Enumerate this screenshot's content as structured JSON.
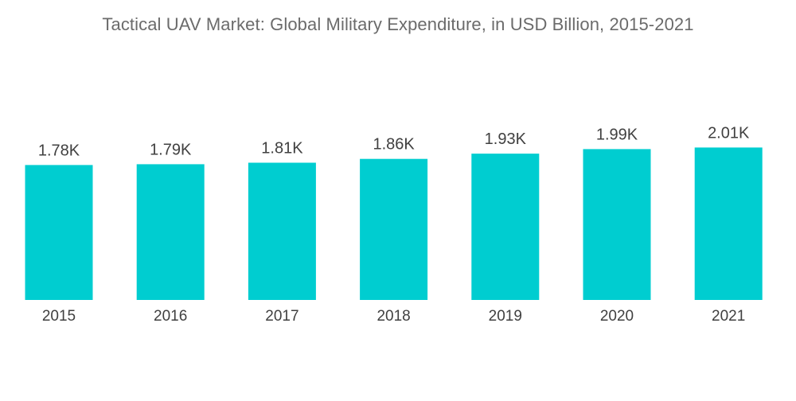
{
  "chart_data": {
    "type": "bar",
    "title": "Tactical UAV Market: Global Military Expenditure, in USD Billion, 2015-2021",
    "xlabel": "",
    "ylabel": "",
    "categories": [
      "2015",
      "2016",
      "2017",
      "2018",
      "2019",
      "2020",
      "2021"
    ],
    "values": [
      1780,
      1790,
      1810,
      1860,
      1930,
      1990,
      2010
    ],
    "value_labels": [
      "1.78K",
      "1.79K",
      "1.81K",
      "1.86K",
      "1.93K",
      "1.99K",
      "2.01K"
    ],
    "bar_color": "#00cdd0",
    "grid": false,
    "legend": "none"
  }
}
